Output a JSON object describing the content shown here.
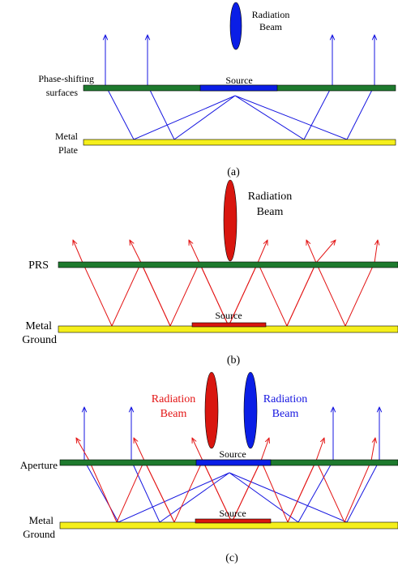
{
  "colors": {
    "plate_green": "#1e7a2e",
    "plate_yellow": "#f5ef1b",
    "source_blue": "#0a1ee6",
    "source_red": "#d9160f",
    "ray_blue": "#1515e0",
    "ray_red": "#e31414"
  },
  "panel_a": {
    "caption": "(a)",
    "beam_label_line1": "Radiation",
    "beam_label_line2": "Beam",
    "upper_label_line1": "Phase-shifting",
    "upper_label_line2": "surfaces",
    "source_label": "Source",
    "lower_label_line1": "Metal",
    "lower_label_line2": "Plate"
  },
  "panel_b": {
    "caption": "(b)",
    "beam_label_line1": "Radiation",
    "beam_label_line2": "Beam",
    "upper_label": "PRS",
    "source_label": "Source",
    "lower_label_line1": "Metal",
    "lower_label_line2": "Ground"
  },
  "panel_c": {
    "caption": "(c)",
    "beam_red_line1": "Radiation",
    "beam_red_line2": "Beam",
    "beam_blue_line1": "Radiation",
    "beam_blue_line2": "Beam",
    "upper_label": "Aperture",
    "source_upper_label": "Source",
    "source_lower_label": "Source",
    "lower_label_line1": "Metal",
    "lower_label_line2": "Ground"
  }
}
